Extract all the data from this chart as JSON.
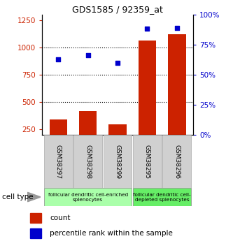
{
  "title": "GDS1585 / 92359_at",
  "samples": [
    "GSM38297",
    "GSM38298",
    "GSM38299",
    "GSM38295",
    "GSM38296"
  ],
  "counts": [
    340,
    420,
    295,
    1060,
    1120
  ],
  "percentiles": [
    63,
    66,
    60,
    88,
    89
  ],
  "bar_color": "#cc2200",
  "dot_color": "#0000cc",
  "ylim_left": [
    200,
    1300
  ],
  "ylim_right": [
    0,
    100
  ],
  "yticks_left": [
    250,
    500,
    750,
    1000,
    1250
  ],
  "yticks_right": [
    0,
    25,
    50,
    75,
    100
  ],
  "grid_vals": [
    500,
    750,
    1000
  ],
  "groups": [
    {
      "label": "follicular dendritic cell-enriched\nsplenocytes",
      "indices": [
        0,
        1,
        2
      ],
      "color": "#aaffaa"
    },
    {
      "label": "follicular dendritic cell-\ndepleted splenocytes",
      "indices": [
        3,
        4
      ],
      "color": "#66ee66"
    }
  ],
  "xlabel_celltype": "cell type",
  "legend_count": "count",
  "legend_percentile": "percentile rank within the sample",
  "bar_width": 0.6,
  "sample_box_color": "#d0d0d0",
  "left_label_color": "#cc2200",
  "right_label_color": "#0000cc"
}
